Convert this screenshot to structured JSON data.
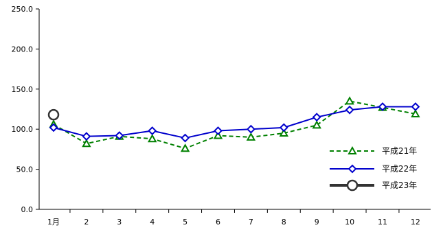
{
  "chart_data": {
    "type": "line",
    "title": "",
    "xlabel": "",
    "ylabel": "",
    "categories": [
      "1月",
      "2",
      "3",
      "4",
      "5",
      "6",
      "7",
      "8",
      "9",
      "10",
      "11",
      "12"
    ],
    "ylim": [
      0,
      250
    ],
    "ytick_labels": [
      "0.0",
      "50.0",
      "100.0",
      "150.0",
      "200.0",
      "250.0"
    ],
    "grid": false,
    "legend_position": "bottom-right",
    "series": [
      {
        "name": "平成21年",
        "color": "#008000",
        "line_style": "dashed",
        "marker": "triangle",
        "values": [
          106,
          82,
          91,
          88,
          76,
          92,
          90,
          95,
          105,
          135,
          127,
          119
        ]
      },
      {
        "name": "平成22年",
        "color": "#0000cc",
        "line_style": "solid",
        "marker": "diamond",
        "values": [
          102,
          91,
          92,
          98,
          89,
          98,
          100,
          102,
          115,
          124,
          128,
          128
        ]
      },
      {
        "name": "平成23年",
        "color": "#333333",
        "line_style": "solid-thick",
        "marker": "circle",
        "values": [
          118,
          null,
          null,
          null,
          null,
          null,
          null,
          null,
          null,
          null,
          null,
          null
        ]
      }
    ]
  }
}
